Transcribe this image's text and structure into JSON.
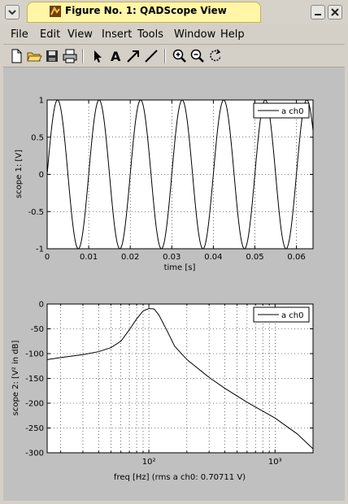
{
  "window": {
    "title": "Figure No. 1: QADScope View"
  },
  "menubar": {
    "items": [
      "File",
      "Edit",
      "View",
      "Insert",
      "Tools",
      "Window",
      "Help"
    ]
  },
  "toolbar": {
    "buttons": [
      "new-file-icon",
      "open-folder-icon",
      "save-icon",
      "print-icon",
      "arrow-select-icon",
      "text-insert-icon",
      "arrow-insert-icon",
      "line-insert-icon",
      "zoom-in-icon",
      "zoom-out-icon",
      "rotate-icon"
    ]
  },
  "chart_data": [
    {
      "type": "line",
      "xlabel": "time [s]",
      "ylabel": "scope 1: [V]",
      "xlim": [
        0,
        0.064
      ],
      "ylim": [
        -1,
        1
      ],
      "xticks": [
        "0",
        "0.01",
        "0.02",
        "0.03",
        "0.04",
        "0.05",
        "0.06"
      ],
      "yticks": [
        "-1",
        "-0.5",
        "0",
        "0.5",
        "1"
      ],
      "grid": true,
      "legend": {
        "position": "top-right",
        "entries": [
          "a ch0"
        ]
      },
      "series": [
        {
          "name": "a ch0",
          "function": "sin",
          "frequency_hz": 100,
          "amplitude": 1,
          "offset": 0
        }
      ]
    },
    {
      "type": "line",
      "xlabel": "freq [Hz]   (rms a ch0: 0.70711 V)",
      "ylabel": "scope 2: [V² in dB]",
      "xscale": "log",
      "xlim": [
        15.625,
        2000
      ],
      "ylim": [
        -300,
        0
      ],
      "xticks": [
        "10²",
        "10³"
      ],
      "yticks": [
        "-300",
        "-250",
        "-200",
        "-150",
        "-100",
        "-50",
        "0"
      ],
      "grid": true,
      "legend": {
        "position": "top-right",
        "entries": [
          "a ch0"
        ]
      },
      "series": [
        {
          "name": "a ch0",
          "x": [
            15.625,
            20,
            30,
            40,
            50,
            60,
            70,
            80,
            90,
            100,
            110,
            120,
            140,
            160,
            200,
            300,
            400,
            600,
            1000,
            1500,
            2000
          ],
          "y": [
            -112,
            -108,
            -102,
            -96,
            -88,
            -75,
            -52,
            -30,
            -14,
            -9,
            -10,
            -22,
            -55,
            -85,
            -112,
            -148,
            -170,
            -198,
            -230,
            -262,
            -292
          ]
        }
      ]
    }
  ]
}
